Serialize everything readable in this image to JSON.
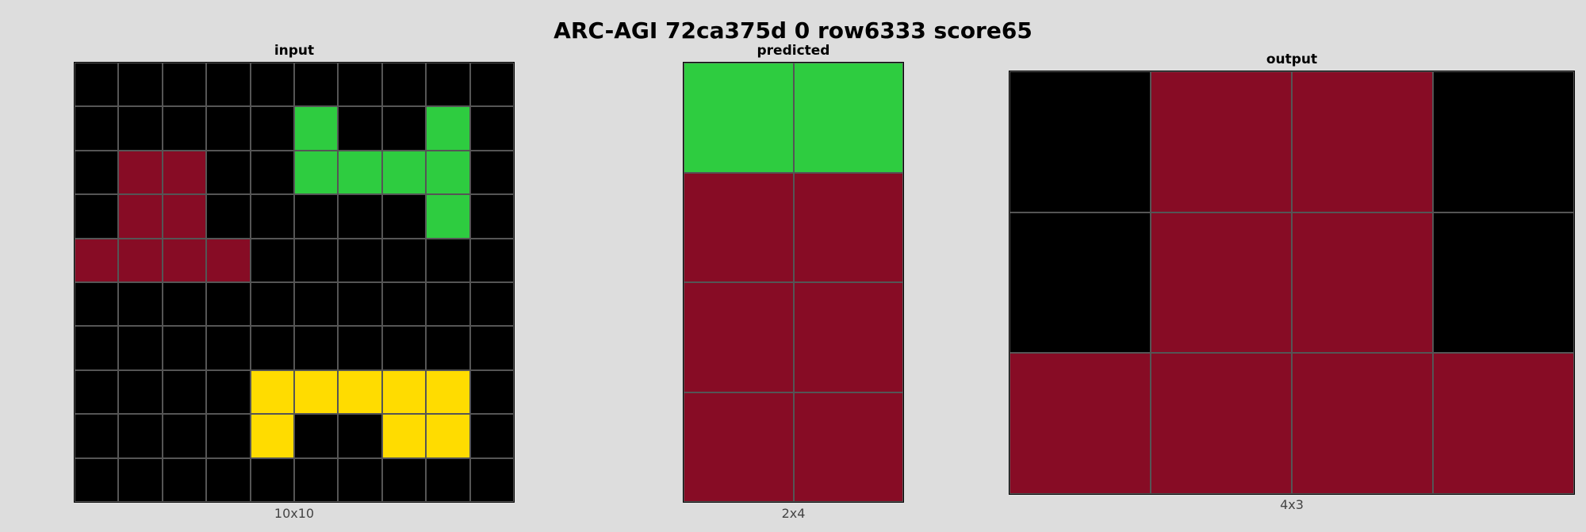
{
  "title": "ARC-AGI 72ca375d 0 row6333 score65",
  "palette": {
    "0": "#000000",
    "2": "#2ECC40",
    "4": "#FFDC00",
    "8": "#870C25"
  },
  "panels": [
    {
      "key": "input",
      "title": "input",
      "caption": "10x10",
      "cols": 10,
      "rows": 10,
      "cells": [
        [
          0,
          0,
          0,
          0,
          0,
          0,
          0,
          0,
          0,
          0
        ],
        [
          0,
          0,
          0,
          0,
          0,
          2,
          0,
          0,
          2,
          0
        ],
        [
          0,
          8,
          8,
          0,
          0,
          2,
          2,
          2,
          2,
          0
        ],
        [
          0,
          8,
          8,
          0,
          0,
          0,
          0,
          0,
          2,
          0
        ],
        [
          8,
          8,
          8,
          8,
          0,
          0,
          0,
          0,
          0,
          0
        ],
        [
          0,
          0,
          0,
          0,
          0,
          0,
          0,
          0,
          0,
          0
        ],
        [
          0,
          0,
          0,
          0,
          0,
          0,
          0,
          0,
          0,
          0
        ],
        [
          0,
          0,
          0,
          0,
          4,
          4,
          4,
          4,
          4,
          0
        ],
        [
          0,
          0,
          0,
          0,
          4,
          0,
          0,
          4,
          4,
          0
        ],
        [
          0,
          0,
          0,
          0,
          0,
          0,
          0,
          0,
          0,
          0
        ]
      ]
    },
    {
      "key": "predicted",
      "title": "predicted",
      "caption": "2x4",
      "cols": 2,
      "rows": 4,
      "cells": [
        [
          2,
          2
        ],
        [
          8,
          8
        ],
        [
          8,
          8
        ],
        [
          8,
          8
        ]
      ]
    },
    {
      "key": "output",
      "title": "output",
      "caption": "4x3",
      "cols": 4,
      "rows": 3,
      "cells": [
        [
          0,
          8,
          8,
          0
        ],
        [
          0,
          8,
          8,
          0
        ],
        [
          8,
          8,
          8,
          8
        ]
      ]
    }
  ]
}
